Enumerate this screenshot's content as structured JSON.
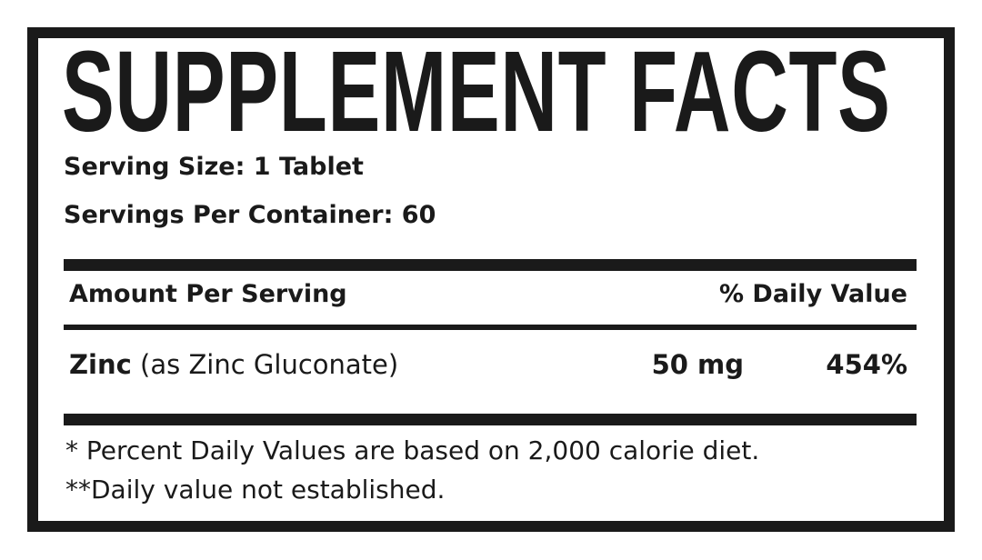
{
  "title": "SUPPLEMENT FACTS",
  "serving_size": "Serving Size: 1 Tablet",
  "servings_per_container": "Servings Per Container: 60",
  "header": {
    "amount": "Amount Per Serving",
    "daily_value": "% Daily Value"
  },
  "rows": [
    {
      "name": "Zinc",
      "detail": " (as Zinc Gluconate)",
      "amount": "50 mg",
      "dv": "454%"
    }
  ],
  "footnotes": [
    "* Percent Daily Values are based on 2,000 calorie diet.",
    "**Daily value not established."
  ]
}
